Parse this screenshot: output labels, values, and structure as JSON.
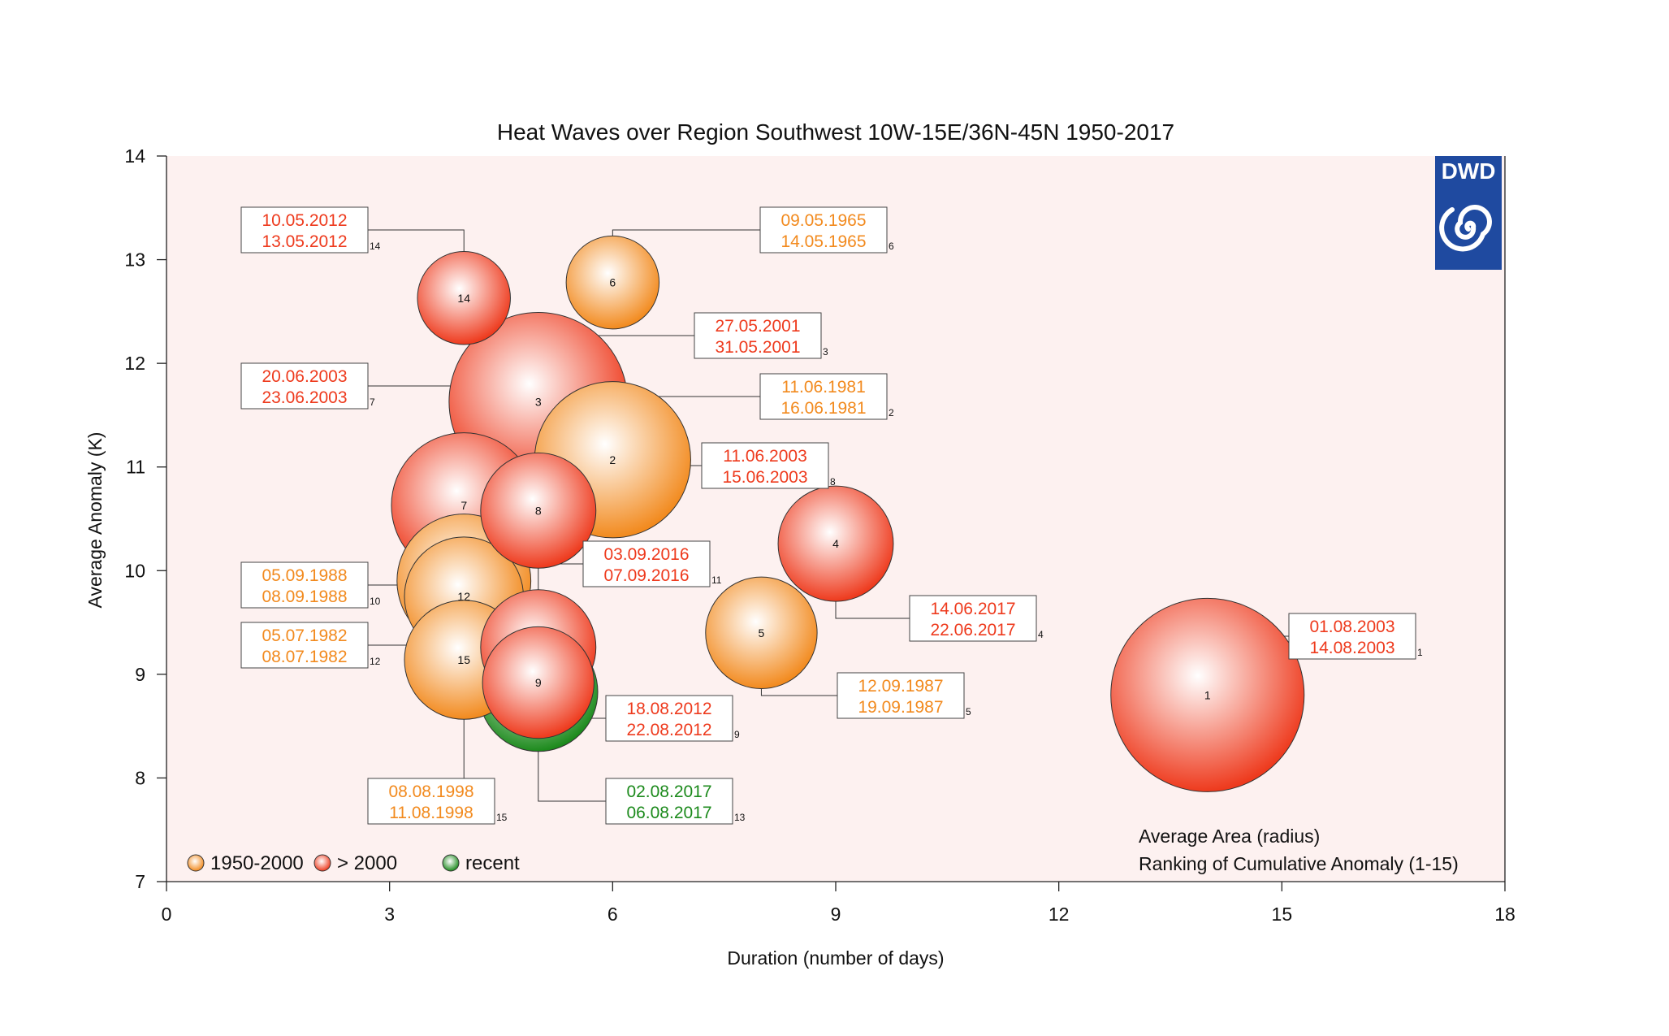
{
  "chart_data": {
    "type": "bubble",
    "title": "Heat Waves over Region Southwest 10W-15E/36N-45N 1950-2017",
    "xlabel": "Duration (number of days)",
    "ylabel": "Average Anomaly (K)",
    "xlim": [
      0,
      18
    ],
    "ylim": [
      7,
      14
    ],
    "xticks": [
      0,
      3,
      6,
      9,
      12,
      15,
      18
    ],
    "yticks": [
      7,
      8,
      9,
      10,
      11,
      12,
      13,
      14
    ],
    "grid": false,
    "background_color": "#fdf1f0",
    "colors": {
      "1950-2000": "#f28a1e",
      "gt2000": "#ee3a1d",
      "recent": "#1c8a1c"
    },
    "events": [
      {
        "rank": 1,
        "x": 14,
        "y": 8.8,
        "size": 2.6,
        "category": "gt2000",
        "start": "01.08.2003",
        "end": "14.08.2003"
      },
      {
        "rank": 2,
        "x": 6,
        "y": 11.07,
        "size": 2.1,
        "category": "1950-2000",
        "start": "11.06.1981",
        "end": "16.06.1981"
      },
      {
        "rank": 3,
        "x": 5,
        "y": 11.63,
        "size": 2.4,
        "category": "gt2000",
        "start": "27.05.2001",
        "end": "31.05.2001"
      },
      {
        "rank": 4,
        "x": 9,
        "y": 10.26,
        "size": 1.55,
        "category": "gt2000",
        "start": "14.06.2017",
        "end": "22.06.2017"
      },
      {
        "rank": 5,
        "x": 8,
        "y": 9.4,
        "size": 1.5,
        "category": "1950-2000",
        "start": "12.09.1987",
        "end": "19.09.1987"
      },
      {
        "rank": 6,
        "x": 6,
        "y": 12.78,
        "size": 1.25,
        "category": "1950-2000",
        "start": "09.05.1965",
        "end": "14.05.1965"
      },
      {
        "rank": 7,
        "x": 4,
        "y": 10.63,
        "size": 1.95,
        "category": "gt2000",
        "start": "20.06.2003",
        "end": "23.06.2003"
      },
      {
        "rank": 8,
        "x": 5,
        "y": 10.58,
        "size": 1.55,
        "category": "gt2000",
        "start": "11.06.2003",
        "end": "15.06.2003"
      },
      {
        "rank": 9,
        "x": 5,
        "y": 8.92,
        "size": 1.5,
        "category": "gt2000",
        "start": "18.08.2012",
        "end": "22.08.2012"
      },
      {
        "rank": 10,
        "x": 4,
        "y": 9.9,
        "size": 1.8,
        "category": "1950-2000",
        "start": "05.09.1988",
        "end": "08.09.1988"
      },
      {
        "rank": 11,
        "x": 5,
        "y": 9.26,
        "size": 1.55,
        "category": "gt2000",
        "start": "03.09.2016",
        "end": "07.09.2016"
      },
      {
        "rank": 12,
        "x": 4,
        "y": 9.75,
        "size": 1.6,
        "category": "1950-2000",
        "start": "05.07.1982",
        "end": "08.07.1982"
      },
      {
        "rank": 13,
        "x": 5,
        "y": 8.83,
        "size": 1.6,
        "category": "recent",
        "start": "02.08.2017",
        "end": "06.08.2017"
      },
      {
        "rank": 14,
        "x": 4,
        "y": 12.63,
        "size": 1.25,
        "category": "gt2000",
        "start": "10.05.2012",
        "end": "13.05.2012"
      },
      {
        "rank": 15,
        "x": 4,
        "y": 9.14,
        "size": 1.6,
        "category": "1950-2000",
        "start": "08.08.1998",
        "end": "11.08.1998"
      }
    ],
    "legend": [
      {
        "key": "1950-2000",
        "label": "1950-2000"
      },
      {
        "key": "gt2000",
        "label": "> 2000"
      },
      {
        "key": "recent",
        "label": "recent"
      }
    ],
    "legend_position": "bottom-left",
    "annotations": [
      "Average Area (radius)",
      "Ranking of Cumulative Anomaly (1-15)"
    ],
    "logo": "DWD"
  }
}
